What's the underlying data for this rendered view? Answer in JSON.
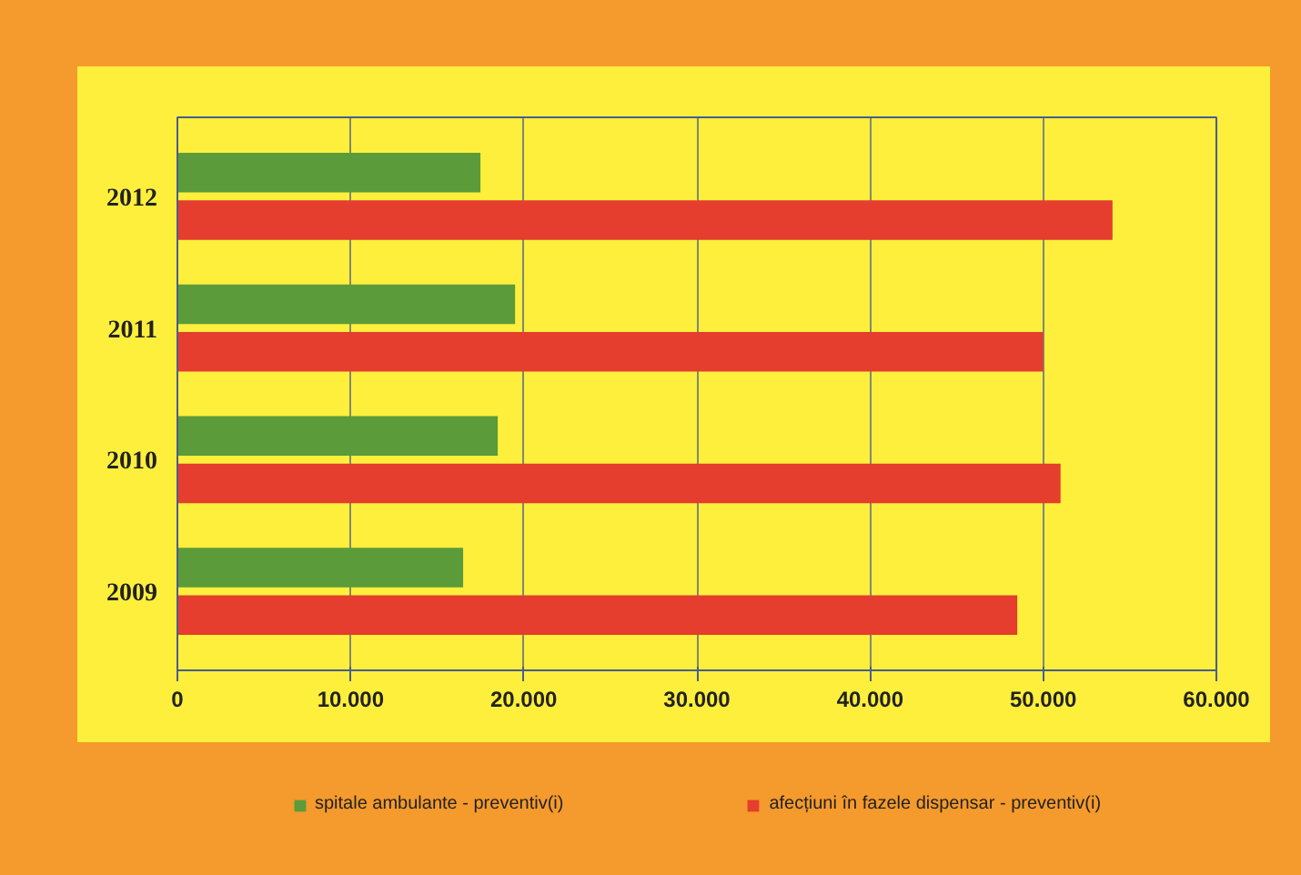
{
  "chart_data": {
    "type": "bar",
    "orientation": "horizontal",
    "categories": [
      "2012",
      "2011",
      "2010",
      "2009"
    ],
    "series": [
      {
        "name": "spitale ambulante - preventiv(i)",
        "color": "#5b9b3a",
        "values": [
          17500,
          19500,
          18500,
          16500
        ]
      },
      {
        "name": "afecțiuni în fazele dispensar - preventiv(i)",
        "color": "#e53d2e",
        "values": [
          54000,
          50000,
          51000,
          48500
        ]
      }
    ],
    "xlim": [
      0,
      60000
    ],
    "xticks": [
      0,
      {
        "value": 10000,
        "label": "10.000"
      },
      {
        "value": 20000,
        "label": "20.000"
      },
      {
        "value": 30000,
        "label": "30.000"
      },
      {
        "value": 40000,
        "label": "40.000"
      },
      {
        "value": 50000,
        "label": "50.000"
      },
      {
        "value": 60000,
        "label": "60.000"
      }
    ],
    "grid": "x",
    "legend": "bottom"
  }
}
